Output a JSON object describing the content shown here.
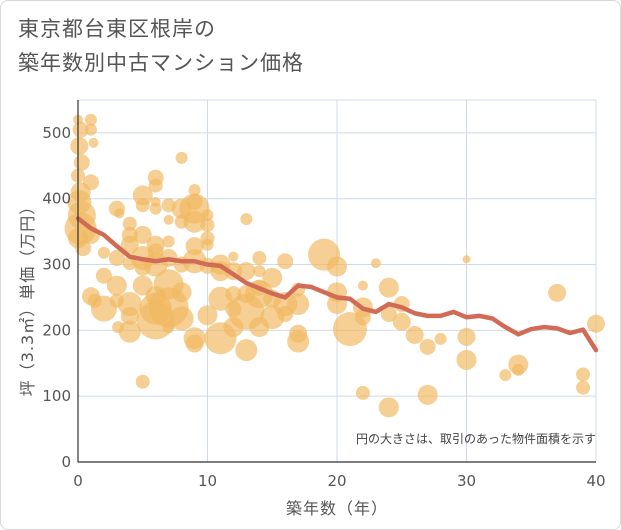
{
  "title_line1": "東京都台東区根岸の",
  "title_line2": "築年数別中古マンション価格",
  "chart_data": {
    "type": "scatter",
    "title": "東京都台東区根岸の築年数別中古マンション価格",
    "xlabel": "築年数（年）",
    "ylabel": "坪（3.3㎡）単価（万円）",
    "xlim": [
      0,
      40
    ],
    "ylim": [
      0,
      550
    ],
    "xticks": [
      "0",
      "10",
      "20",
      "30",
      "40"
    ],
    "yticks": [
      "0",
      "100",
      "200",
      "300",
      "400",
      "500"
    ],
    "grid": true,
    "note": "円の大きさは、取引のあった物件面積を示す",
    "colors": {
      "bubble": "#f0b860",
      "line": "#d26b55",
      "grid": "#cfdbe6"
    },
    "bubbles": [
      {
        "x": 0.0,
        "y": 520,
        "s": 5
      },
      {
        "x": 0.2,
        "y": 505,
        "s": 8
      },
      {
        "x": 0.1,
        "y": 480,
        "s": 9
      },
      {
        "x": 0.3,
        "y": 455,
        "s": 8
      },
      {
        "x": 0.0,
        "y": 435,
        "s": 7
      },
      {
        "x": 0.2,
        "y": 410,
        "s": 10
      },
      {
        "x": 0.1,
        "y": 395,
        "s": 12
      },
      {
        "x": 0.3,
        "y": 375,
        "s": 14
      },
      {
        "x": 0.2,
        "y": 355,
        "s": 16
      },
      {
        "x": 0.0,
        "y": 340,
        "s": 10
      },
      {
        "x": 0.4,
        "y": 325,
        "s": 8
      },
      {
        "x": 1.0,
        "y": 520,
        "s": 6
      },
      {
        "x": 1.0,
        "y": 505,
        "s": 6
      },
      {
        "x": 1.2,
        "y": 485,
        "s": 5
      },
      {
        "x": 1.0,
        "y": 425,
        "s": 8
      },
      {
        "x": 1.0,
        "y": 345,
        "s": 9
      },
      {
        "x": 1.0,
        "y": 252,
        "s": 9
      },
      {
        "x": 1.3,
        "y": 245,
        "s": 7
      },
      {
        "x": 2.0,
        "y": 318,
        "s": 6
      },
      {
        "x": 2.0,
        "y": 283,
        "s": 8
      },
      {
        "x": 2.0,
        "y": 233,
        "s": 13
      },
      {
        "x": 3.0,
        "y": 385,
        "s": 8
      },
      {
        "x": 3.2,
        "y": 378,
        "s": 5
      },
      {
        "x": 3.0,
        "y": 310,
        "s": 8
      },
      {
        "x": 3.0,
        "y": 268,
        "s": 10
      },
      {
        "x": 3.0,
        "y": 245,
        "s": 7
      },
      {
        "x": 3.1,
        "y": 205,
        "s": 6
      },
      {
        "x": 4.0,
        "y": 362,
        "s": 7
      },
      {
        "x": 4.0,
        "y": 345,
        "s": 8
      },
      {
        "x": 4.0,
        "y": 330,
        "s": 9
      },
      {
        "x": 4.0,
        "y": 302,
        "s": 7
      },
      {
        "x": 4.0,
        "y": 240,
        "s": 12
      },
      {
        "x": 4.0,
        "y": 222,
        "s": 9
      },
      {
        "x": 4.0,
        "y": 198,
        "s": 11
      },
      {
        "x": 5.0,
        "y": 405,
        "s": 10
      },
      {
        "x": 5.0,
        "y": 390,
        "s": 7
      },
      {
        "x": 5.0,
        "y": 345,
        "s": 9
      },
      {
        "x": 5.0,
        "y": 310,
        "s": 12
      },
      {
        "x": 5.0,
        "y": 295,
        "s": 8
      },
      {
        "x": 5.0,
        "y": 268,
        "s": 10
      },
      {
        "x": 5.0,
        "y": 122,
        "s": 7
      },
      {
        "x": 6.0,
        "y": 432,
        "s": 8
      },
      {
        "x": 6.0,
        "y": 420,
        "s": 7
      },
      {
        "x": 6.0,
        "y": 395,
        "s": 5
      },
      {
        "x": 6.0,
        "y": 385,
        "s": 6
      },
      {
        "x": 6.0,
        "y": 330,
        "s": 9
      },
      {
        "x": 6.0,
        "y": 320,
        "s": 8
      },
      {
        "x": 6.0,
        "y": 300,
        "s": 12
      },
      {
        "x": 6.0,
        "y": 252,
        "s": 10
      },
      {
        "x": 6.0,
        "y": 233,
        "s": 16
      },
      {
        "x": 6.0,
        "y": 215,
        "s": 19
      },
      {
        "x": 7.0,
        "y": 390,
        "s": 7
      },
      {
        "x": 7.0,
        "y": 368,
        "s": 5
      },
      {
        "x": 7.0,
        "y": 335,
        "s": 6
      },
      {
        "x": 7.0,
        "y": 310,
        "s": 9
      },
      {
        "x": 7.0,
        "y": 270,
        "s": 15
      },
      {
        "x": 7.0,
        "y": 235,
        "s": 20
      },
      {
        "x": 7.0,
        "y": 205,
        "s": 6
      },
      {
        "x": 8.0,
        "y": 462,
        "s": 6
      },
      {
        "x": 8.0,
        "y": 385,
        "s": 10
      },
      {
        "x": 8.0,
        "y": 365,
        "s": 7
      },
      {
        "x": 8.0,
        "y": 300,
        "s": 8
      },
      {
        "x": 8.0,
        "y": 258,
        "s": 10
      },
      {
        "x": 8.0,
        "y": 218,
        "s": 12
      },
      {
        "x": 9.0,
        "y": 413,
        "s": 6
      },
      {
        "x": 9.0,
        "y": 395,
        "s": 8
      },
      {
        "x": 9.0,
        "y": 385,
        "s": 15
      },
      {
        "x": 9.0,
        "y": 365,
        "s": 11
      },
      {
        "x": 9.0,
        "y": 328,
        "s": 9
      },
      {
        "x": 9.0,
        "y": 305,
        "s": 12
      },
      {
        "x": 9.0,
        "y": 188,
        "s": 11
      },
      {
        "x": 9.0,
        "y": 180,
        "s": 9
      },
      {
        "x": 10.0,
        "y": 375,
        "s": 6
      },
      {
        "x": 10.0,
        "y": 360,
        "s": 7
      },
      {
        "x": 10.0,
        "y": 340,
        "s": 7
      },
      {
        "x": 10.0,
        "y": 330,
        "s": 6
      },
      {
        "x": 10.0,
        "y": 298,
        "s": 8
      },
      {
        "x": 10.0,
        "y": 223,
        "s": 10
      },
      {
        "x": 11.0,
        "y": 300,
        "s": 10
      },
      {
        "x": 11.0,
        "y": 290,
        "s": 10
      },
      {
        "x": 11.0,
        "y": 248,
        "s": 12
      },
      {
        "x": 11.0,
        "y": 188,
        "s": 16
      },
      {
        "x": 12.0,
        "y": 290,
        "s": 9
      },
      {
        "x": 12.0,
        "y": 255,
        "s": 8
      },
      {
        "x": 12.0,
        "y": 232,
        "s": 8
      },
      {
        "x": 12.0,
        "y": 205,
        "s": 10
      },
      {
        "x": 12.0,
        "y": 312,
        "s": 5
      },
      {
        "x": 13.0,
        "y": 369,
        "s": 6
      },
      {
        "x": 13.0,
        "y": 290,
        "s": 9
      },
      {
        "x": 13.0,
        "y": 255,
        "s": 9
      },
      {
        "x": 13.0,
        "y": 228,
        "s": 18
      },
      {
        "x": 13.0,
        "y": 170,
        "s": 11
      },
      {
        "x": 14.0,
        "y": 310,
        "s": 7
      },
      {
        "x": 14.0,
        "y": 290,
        "s": 6
      },
      {
        "x": 14.0,
        "y": 265,
        "s": 8
      },
      {
        "x": 14.0,
        "y": 255,
        "s": 14
      },
      {
        "x": 14.0,
        "y": 205,
        "s": 10
      },
      {
        "x": 15.0,
        "y": 280,
        "s": 10
      },
      {
        "x": 15.0,
        "y": 248,
        "s": 9
      },
      {
        "x": 15.0,
        "y": 220,
        "s": 12
      },
      {
        "x": 16.0,
        "y": 305,
        "s": 8
      },
      {
        "x": 16.0,
        "y": 240,
        "s": 12
      },
      {
        "x": 16.0,
        "y": 225,
        "s": 8
      },
      {
        "x": 17.0,
        "y": 262,
        "s": 7
      },
      {
        "x": 17.0,
        "y": 240,
        "s": 11
      },
      {
        "x": 17.0,
        "y": 183,
        "s": 11
      },
      {
        "x": 17.0,
        "y": 195,
        "s": 9
      },
      {
        "x": 19.0,
        "y": 315,
        "s": 16
      },
      {
        "x": 20.0,
        "y": 297,
        "s": 10
      },
      {
        "x": 20.0,
        "y": 258,
        "s": 10
      },
      {
        "x": 20.0,
        "y": 240,
        "s": 10
      },
      {
        "x": 21.0,
        "y": 202,
        "s": 17
      },
      {
        "x": 22.0,
        "y": 268,
        "s": 5
      },
      {
        "x": 22.0,
        "y": 235,
        "s": 10
      },
      {
        "x": 22.0,
        "y": 220,
        "s": 8
      },
      {
        "x": 22.0,
        "y": 105,
        "s": 7
      },
      {
        "x": 23.0,
        "y": 302,
        "s": 5
      },
      {
        "x": 24.0,
        "y": 265,
        "s": 10
      },
      {
        "x": 24.0,
        "y": 225,
        "s": 8
      },
      {
        "x": 24.0,
        "y": 83,
        "s": 10
      },
      {
        "x": 25.0,
        "y": 240,
        "s": 8
      },
      {
        "x": 25.0,
        "y": 213,
        "s": 9
      },
      {
        "x": 26.0,
        "y": 193,
        "s": 9
      },
      {
        "x": 27.0,
        "y": 175,
        "s": 8
      },
      {
        "x": 27.0,
        "y": 102,
        "s": 10
      },
      {
        "x": 28.0,
        "y": 187,
        "s": 6
      },
      {
        "x": 30.0,
        "y": 308,
        "s": 4
      },
      {
        "x": 30.0,
        "y": 190,
        "s": 9
      },
      {
        "x": 30.0,
        "y": 155,
        "s": 10
      },
      {
        "x": 33.0,
        "y": 132,
        "s": 6
      },
      {
        "x": 34.0,
        "y": 148,
        "s": 10
      },
      {
        "x": 34.0,
        "y": 140,
        "s": 6
      },
      {
        "x": 37.0,
        "y": 257,
        "s": 9
      },
      {
        "x": 39.0,
        "y": 133,
        "s": 7
      },
      {
        "x": 39.0,
        "y": 113,
        "s": 7
      },
      {
        "x": 40.0,
        "y": 210,
        "s": 9
      }
    ],
    "trend": {
      "x": [
        0,
        1,
        2,
        3,
        4,
        5,
        6,
        7,
        8,
        9,
        10,
        11,
        12,
        13,
        14,
        15,
        16,
        17,
        18,
        19,
        20,
        21,
        22,
        23,
        24,
        25,
        26,
        27,
        28,
        29,
        30,
        31,
        32,
        33,
        34,
        35,
        36,
        37,
        38,
        39,
        40
      ],
      "y": [
        370,
        355,
        345,
        328,
        312,
        308,
        305,
        308,
        305,
        305,
        300,
        298,
        285,
        272,
        264,
        256,
        250,
        268,
        266,
        258,
        250,
        248,
        233,
        228,
        240,
        235,
        226,
        222,
        222,
        228,
        220,
        222,
        218,
        205,
        194,
        202,
        205,
        203,
        196,
        201,
        170
      ]
    }
  }
}
